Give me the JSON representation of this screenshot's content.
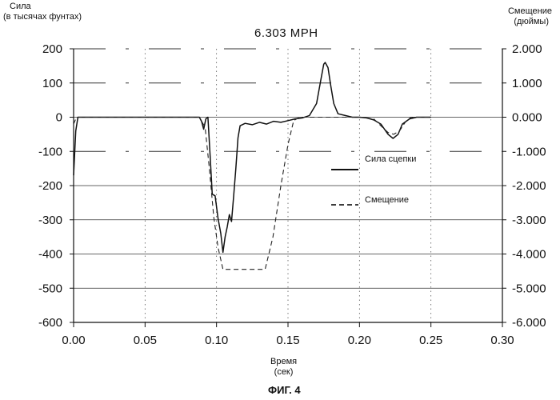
{
  "chart_data": {
    "type": "line",
    "title": "6.303 MPH",
    "ylabel_left": [
      "Сила",
      "(в тысячах фунтах)"
    ],
    "ylabel_right": [
      "Смещение",
      "(дюймы)"
    ],
    "xlabel": [
      "Время",
      "(сек)"
    ],
    "caption": "ФИГ. 4",
    "xlim": [
      0.0,
      0.3
    ],
    "ylim_left": [
      -600,
      200
    ],
    "ylim_right": [
      -6.0,
      2.0
    ],
    "xticks": [
      "0.00",
      "0.05",
      "0.10",
      "0.15",
      "0.20",
      "0.25",
      "0.30"
    ],
    "yticks_left": [
      "200",
      "100",
      "0",
      "-100",
      "-200",
      "-300",
      "-400",
      "-500",
      "-600"
    ],
    "yticks_right": [
      "2.000",
      "1.000",
      "0.000",
      "-1.000",
      "-2.000",
      "-3.000",
      "-4.000",
      "-5.000",
      "-6.000"
    ],
    "grid": "partial dash-dot",
    "legend_position": "center-right",
    "series": [
      {
        "name": "Сила сцепки",
        "axis": "left",
        "style": "solid",
        "points": [
          [
            0.0,
            -170
          ],
          [
            0.0015,
            -40
          ],
          [
            0.003,
            0
          ],
          [
            0.02,
            0
          ],
          [
            0.05,
            0
          ],
          [
            0.07,
            0
          ],
          [
            0.088,
            0
          ],
          [
            0.0895,
            -12
          ],
          [
            0.091,
            -35
          ],
          [
            0.0925,
            -5
          ],
          [
            0.094,
            0
          ],
          [
            0.0955,
            -110
          ],
          [
            0.097,
            -225
          ],
          [
            0.099,
            -230
          ],
          [
            0.101,
            -295
          ],
          [
            0.103,
            -340
          ],
          [
            0.1045,
            -395
          ],
          [
            0.106,
            -350
          ],
          [
            0.1075,
            -320
          ],
          [
            0.109,
            -285
          ],
          [
            0.1105,
            -305
          ],
          [
            0.112,
            -230
          ],
          [
            0.1135,
            -150
          ],
          [
            0.115,
            -60
          ],
          [
            0.1165,
            -25
          ],
          [
            0.12,
            -18
          ],
          [
            0.125,
            -22
          ],
          [
            0.13,
            -15
          ],
          [
            0.135,
            -20
          ],
          [
            0.14,
            -12
          ],
          [
            0.145,
            -15
          ],
          [
            0.15,
            -10
          ],
          [
            0.155,
            -5
          ],
          [
            0.16,
            -2
          ],
          [
            0.165,
            5
          ],
          [
            0.17,
            40
          ],
          [
            0.173,
            110
          ],
          [
            0.175,
            155
          ],
          [
            0.176,
            160
          ],
          [
            0.178,
            145
          ],
          [
            0.18,
            90
          ],
          [
            0.182,
            40
          ],
          [
            0.185,
            10
          ],
          [
            0.19,
            5
          ],
          [
            0.195,
            0
          ],
          [
            0.2,
            0
          ],
          [
            0.205,
            -2
          ],
          [
            0.21,
            -8
          ],
          [
            0.215,
            -20
          ],
          [
            0.22,
            -50
          ],
          [
            0.2235,
            -62
          ],
          [
            0.227,
            -50
          ],
          [
            0.23,
            -20
          ],
          [
            0.235,
            -5
          ],
          [
            0.24,
            0
          ],
          [
            0.25,
            0
          ]
        ]
      },
      {
        "name": "Смещение",
        "axis": "right",
        "style": "dashed",
        "points": [
          [
            0.0,
            -0.2
          ],
          [
            0.002,
            0.0
          ],
          [
            0.05,
            0.0
          ],
          [
            0.088,
            0.0
          ],
          [
            0.092,
            -0.3
          ],
          [
            0.095,
            -1.5
          ],
          [
            0.098,
            -2.9
          ],
          [
            0.101,
            -3.8
          ],
          [
            0.1045,
            -4.45
          ],
          [
            0.134,
            -4.45
          ],
          [
            0.1395,
            -3.5
          ],
          [
            0.145,
            -2.0
          ],
          [
            0.15,
            -0.8
          ],
          [
            0.154,
            -0.1
          ],
          [
            0.158,
            0.0
          ],
          [
            0.2,
            0.0
          ],
          [
            0.21,
            -0.05
          ],
          [
            0.215,
            -0.25
          ],
          [
            0.22,
            -0.45
          ],
          [
            0.224,
            -0.5
          ],
          [
            0.228,
            -0.4
          ],
          [
            0.232,
            -0.15
          ],
          [
            0.236,
            0.0
          ],
          [
            0.25,
            0.0
          ]
        ]
      }
    ]
  }
}
